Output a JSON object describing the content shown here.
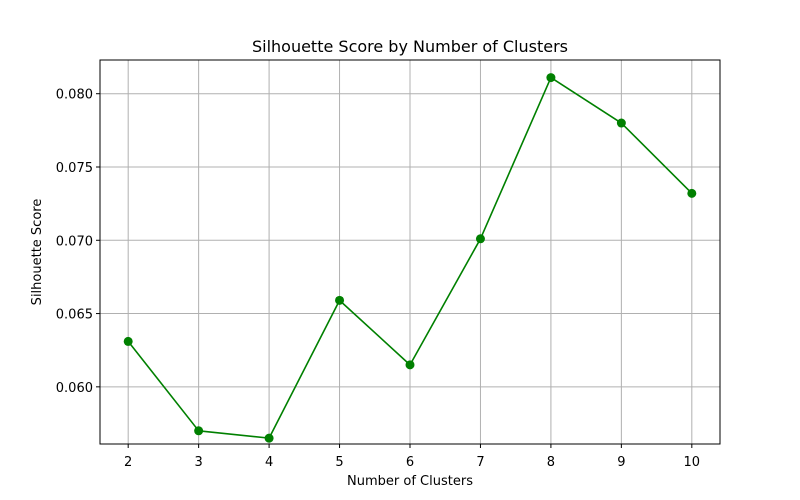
{
  "chart_data": {
    "type": "line",
    "title": "Silhouette Score by Number of Clusters",
    "xlabel": "Number of Clusters",
    "ylabel": "Silhouette Score",
    "x": [
      2,
      3,
      4,
      5,
      6,
      7,
      8,
      9,
      10
    ],
    "series": [
      {
        "values": [
          0.0631,
          0.057,
          0.0565,
          0.0659,
          0.0615,
          0.0701,
          0.0811,
          0.078,
          0.0732
        ],
        "color": "#008000",
        "marker": "circle"
      }
    ],
    "xticks": [
      "2",
      "3",
      "4",
      "5",
      "6",
      "7",
      "8",
      "9",
      "10"
    ],
    "yticks": [
      "0.060",
      "0.065",
      "0.070",
      "0.075",
      "0.080"
    ],
    "xlim": [
      1.6,
      10.4
    ],
    "ylim": [
      0.0561,
      0.0823
    ],
    "grid": true
  }
}
